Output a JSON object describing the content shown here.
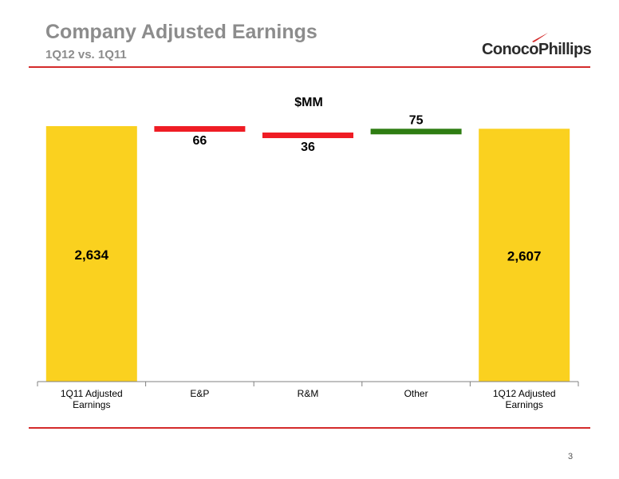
{
  "slide": {
    "title": "Company Adjusted Earnings",
    "subtitle": "1Q12 vs. 1Q11",
    "logo_text": "ConocoPhillips",
    "page_number": "3"
  },
  "chart_data": {
    "type": "bar",
    "subtype": "waterfall",
    "unit_label": "$MM",
    "categories": [
      "1Q11 Adjusted Earnings",
      "E&P",
      "R&M",
      "Other",
      "1Q12 Adjusted Earnings"
    ],
    "category_labels": [
      [
        "1Q11 Adjusted",
        "Earnings"
      ],
      [
        "E&P"
      ],
      [
        "R&M"
      ],
      [
        "Other"
      ],
      [
        "1Q12 Adjusted",
        "Earnings"
      ]
    ],
    "values": [
      2634,
      -66,
      -36,
      75,
      2607
    ],
    "value_labels": [
      "2,634",
      "66",
      "36",
      "75",
      "2,607"
    ],
    "kinds": [
      "total",
      "decrease",
      "decrease",
      "increase",
      "total"
    ],
    "colors": {
      "total": "#fad11f",
      "decrease": "#ef1c24",
      "increase": "#2e7d12",
      "axis": "#808080"
    },
    "grid": false,
    "legend": "none"
  }
}
